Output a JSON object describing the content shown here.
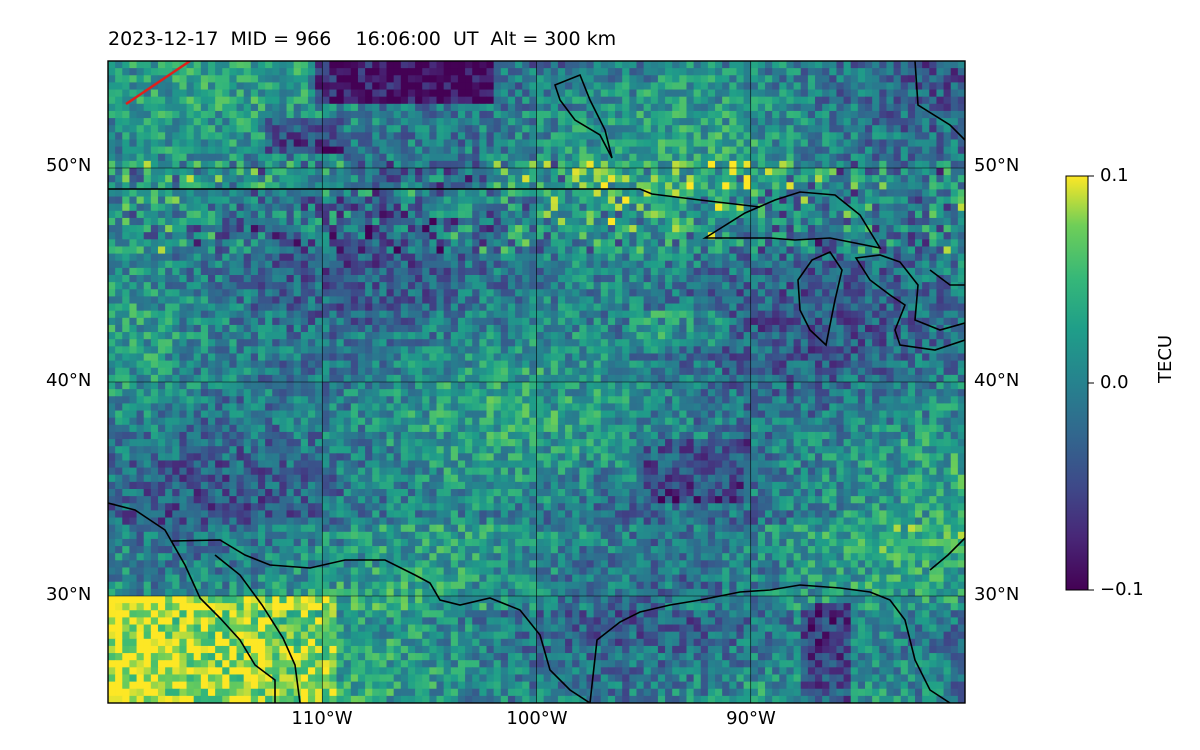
{
  "figure": {
    "title": "2023-12-17  MID = 966    16:06:00  UT  Alt = 300 km",
    "lat_labels": [
      "50°N",
      "40°N",
      "30°N"
    ],
    "lon_labels": [
      "110°W",
      "100°W",
      "90°W"
    ],
    "colorbar": {
      "label": "TECU",
      "ticks": [
        "0.1",
        "0.0",
        "−0.1"
      ],
      "colormap": "viridis",
      "vmin": -0.1,
      "vmax": 0.1
    }
  },
  "map": {
    "extent": {
      "lon_min": -120,
      "lon_max": -80,
      "lat_min": 25,
      "lat_max": 55
    },
    "gridlines": {
      "lon": [
        -110,
        -100,
        -90
      ],
      "lat": [
        30,
        40,
        50
      ]
    },
    "field": "detrended total electron content",
    "colors": {
      "coast": "#000000",
      "track": "#e0201a"
    }
  }
}
